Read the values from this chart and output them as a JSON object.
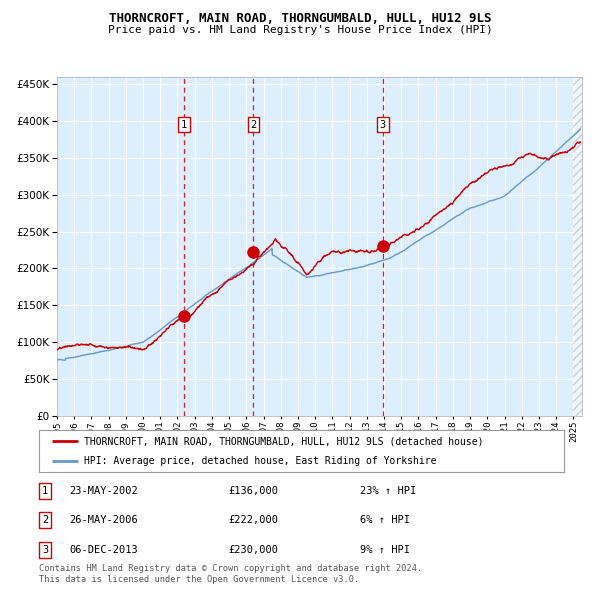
{
  "title": "THORNCROFT, MAIN ROAD, THORNGUMBALD, HULL, HU12 9LS",
  "subtitle": "Price paid vs. HM Land Registry's House Price Index (HPI)",
  "legend_line1": "THORNCROFT, MAIN ROAD, THORNGUMBALD, HULL, HU12 9LS (detached house)",
  "legend_line2": "HPI: Average price, detached house, East Riding of Yorkshire",
  "footer1": "Contains HM Land Registry data © Crown copyright and database right 2024.",
  "footer2": "This data is licensed under the Open Government Licence v3.0.",
  "sales": [
    {
      "num": "1",
      "date": "23-MAY-2002",
      "price": "£136,000",
      "hpi_pct": "23% ↑ HPI",
      "date_x": 2002.38
    },
    {
      "num": "2",
      "date": "26-MAY-2006",
      "price": "£222,000",
      "hpi_pct": "6% ↑ HPI",
      "date_x": 2006.4
    },
    {
      "num": "3",
      "date": "06-DEC-2013",
      "price": "£230,000",
      "hpi_pct": "9% ↑ HPI",
      "date_x": 2013.93
    }
  ],
  "sale_prices": [
    136000,
    222000,
    230000
  ],
  "red_line_color": "#cc0000",
  "blue_line_color": "#6699cc",
  "bg_color": "#ddeeff",
  "grid_color": "#ffffff",
  "vline_color": "#cc0000",
  "marker_color": "#cc0000",
  "ylim": [
    0,
    460000
  ],
  "ytick_max": 400000,
  "xlim_start": 1995.0,
  "xlim_end": 2025.5
}
